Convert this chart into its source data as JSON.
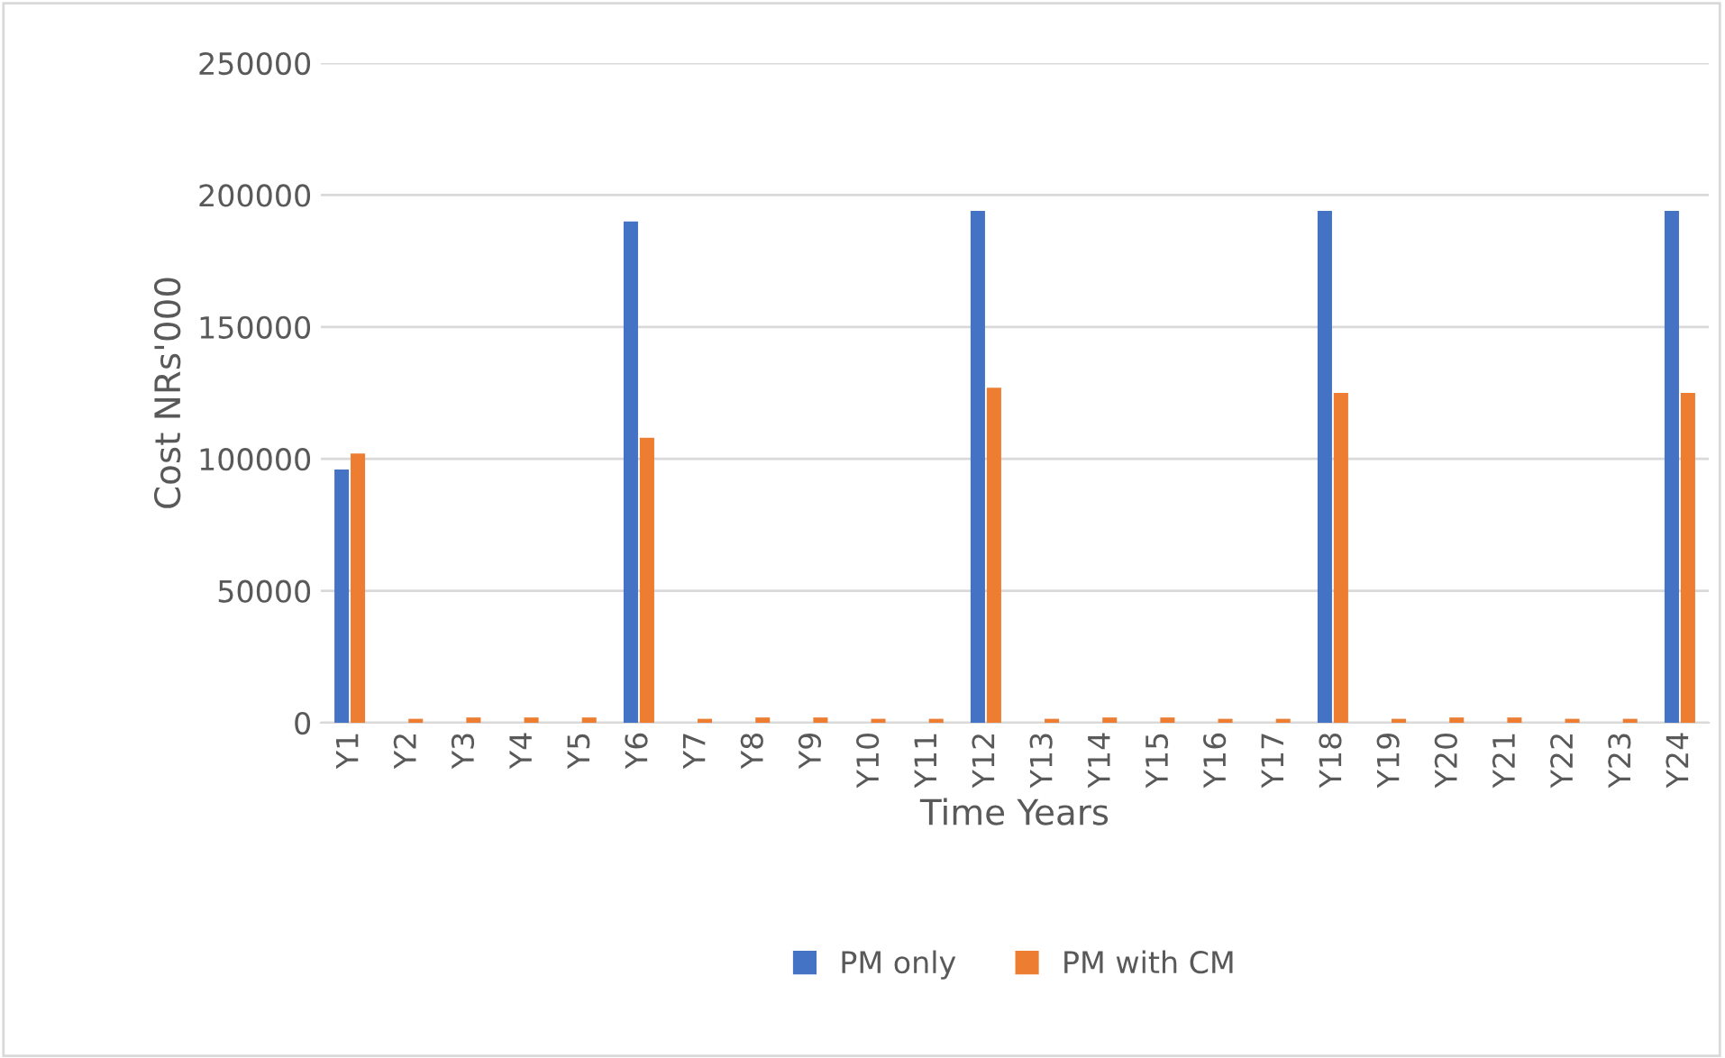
{
  "chart_data": {
    "type": "bar",
    "xlabel": "Time Years",
    "ylabel": "Cost NRs'000",
    "categories": [
      "Y1",
      "Y2",
      "Y3",
      "Y4",
      "Y5",
      "Y6",
      "Y7",
      "Y8",
      "Y9",
      "Y10",
      "Y11",
      "Y12",
      "Y13",
      "Y14",
      "Y15",
      "Y16",
      "Y17",
      "Y18",
      "Y19",
      "Y20",
      "Y21",
      "Y22",
      "Y23",
      "Y24"
    ],
    "series": [
      {
        "name": "PM only",
        "color": "#4472c4",
        "values": [
          96000,
          0,
          0,
          0,
          0,
          190000,
          0,
          0,
          0,
          0,
          0,
          194000,
          0,
          0,
          0,
          0,
          0,
          194000,
          0,
          0,
          0,
          0,
          0,
          194000
        ]
      },
      {
        "name": "PM with CM",
        "color": "#ed7d31",
        "values": [
          102000,
          1500,
          2000,
          2000,
          2000,
          108000,
          1500,
          2000,
          2000,
          1500,
          1500,
          127000,
          1500,
          2000,
          2000,
          1500,
          1500,
          125000,
          1500,
          2000,
          2000,
          1500,
          1500,
          125000
        ]
      }
    ],
    "ylim": [
      0,
      250000
    ],
    "yticks": [
      0,
      50000,
      100000,
      150000,
      200000,
      250000
    ],
    "grid": "y",
    "legend": "bottom"
  }
}
